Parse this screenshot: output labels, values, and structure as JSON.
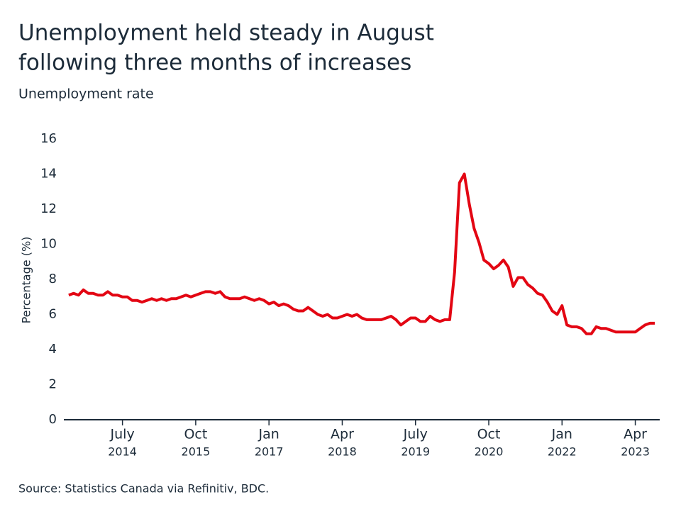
{
  "chart_data": {
    "type": "line",
    "title": [
      "Unemployment held steady in August",
      "following three months of increases"
    ],
    "subtitle": "Unemployment rate",
    "y_label": "Percentage (%)",
    "source": "Source: Statistics Canada via Refinitiv, BDC.",
    "x": [
      "2013-08",
      "2013-09",
      "2013-10",
      "2013-11",
      "2013-12",
      "2014-01",
      "2014-02",
      "2014-03",
      "2014-04",
      "2014-05",
      "2014-06",
      "2014-07",
      "2014-08",
      "2014-09",
      "2014-10",
      "2014-11",
      "2014-12",
      "2015-01",
      "2015-02",
      "2015-03",
      "2015-04",
      "2015-05",
      "2015-06",
      "2015-07",
      "2015-08",
      "2015-09",
      "2015-10",
      "2015-11",
      "2015-12",
      "2016-01",
      "2016-02",
      "2016-03",
      "2016-04",
      "2016-05",
      "2016-06",
      "2016-07",
      "2016-08",
      "2016-09",
      "2016-10",
      "2016-11",
      "2016-12",
      "2017-01",
      "2017-02",
      "2017-03",
      "2017-04",
      "2017-05",
      "2017-06",
      "2017-07",
      "2017-08",
      "2017-09",
      "2017-10",
      "2017-11",
      "2017-12",
      "2018-01",
      "2018-02",
      "2018-03",
      "2018-04",
      "2018-05",
      "2018-06",
      "2018-07",
      "2018-08",
      "2018-09",
      "2018-10",
      "2018-11",
      "2018-12",
      "2019-01",
      "2019-02",
      "2019-03",
      "2019-04",
      "2019-05",
      "2019-06",
      "2019-07",
      "2019-08",
      "2019-09",
      "2019-10",
      "2019-11",
      "2019-12",
      "2020-01",
      "2020-02",
      "2020-03",
      "2020-04",
      "2020-05",
      "2020-06",
      "2020-07",
      "2020-08",
      "2020-09",
      "2020-10",
      "2020-11",
      "2020-12",
      "2021-01",
      "2021-02",
      "2021-03",
      "2021-04",
      "2021-05",
      "2021-06",
      "2021-07",
      "2021-08",
      "2021-09",
      "2021-10",
      "2021-11",
      "2021-12",
      "2022-01",
      "2022-02",
      "2022-03",
      "2022-04",
      "2022-05",
      "2022-06",
      "2022-07",
      "2022-08",
      "2022-09",
      "2022-10",
      "2022-11",
      "2022-12",
      "2023-01",
      "2023-02",
      "2023-03",
      "2023-04",
      "2023-05",
      "2023-06",
      "2023-07",
      "2023-08"
    ],
    "series": [
      {
        "name": "Unemployment rate",
        "color": "#e30613",
        "values": [
          7.1,
          7.2,
          7.1,
          7.4,
          7.2,
          7.2,
          7.1,
          7.1,
          7.3,
          7.1,
          7.1,
          7.0,
          7.0,
          6.8,
          6.8,
          6.7,
          6.8,
          6.9,
          6.8,
          6.9,
          6.8,
          6.9,
          6.9,
          7.0,
          7.1,
          7.0,
          7.1,
          7.2,
          7.3,
          7.3,
          7.2,
          7.3,
          7.0,
          6.9,
          6.9,
          6.9,
          7.0,
          6.9,
          6.8,
          6.9,
          6.8,
          6.6,
          6.7,
          6.5,
          6.6,
          6.5,
          6.3,
          6.2,
          6.2,
          6.4,
          6.2,
          6.0,
          5.9,
          6.0,
          5.8,
          5.8,
          5.9,
          6.0,
          5.9,
          6.0,
          5.8,
          5.7,
          5.7,
          5.7,
          5.7,
          5.8,
          5.9,
          5.7,
          5.4,
          5.6,
          5.8,
          5.8,
          5.6,
          5.6,
          5.9,
          5.7,
          5.6,
          5.7,
          5.7,
          8.4,
          13.5,
          14.0,
          12.3,
          10.9,
          10.1,
          9.1,
          8.9,
          8.6,
          8.8,
          9.1,
          8.7,
          7.6,
          8.1,
          8.1,
          7.7,
          7.5,
          7.2,
          7.1,
          6.7,
          6.2,
          6.0,
          6.5,
          5.4,
          5.3,
          5.3,
          5.2,
          4.9,
          4.9,
          5.3,
          5.2,
          5.2,
          5.1,
          5.0,
          5.0,
          5.0,
          5.0,
          5.0,
          5.2,
          5.4,
          5.5,
          5.5
        ]
      }
    ],
    "xlim": [
      "2013-07",
      "2023-09"
    ],
    "xticks": [
      {
        "value": "2014-07",
        "label": [
          "July",
          "2014"
        ]
      },
      {
        "value": "2015-10",
        "label": [
          "Oct",
          "2015"
        ]
      },
      {
        "value": "2017-01",
        "label": [
          "Jan",
          "2017"
        ]
      },
      {
        "value": "2018-04",
        "label": [
          "Apr",
          "2018"
        ]
      },
      {
        "value": "2019-07",
        "label": [
          "July",
          "2019"
        ]
      },
      {
        "value": "2020-10",
        "label": [
          "Oct",
          "2020"
        ]
      },
      {
        "value": "2022-01",
        "label": [
          "Jan",
          "2022"
        ]
      },
      {
        "value": "2023-04",
        "label": [
          "Apr",
          "2023"
        ]
      }
    ],
    "ylim": [
      0,
      16
    ],
    "yticks": [
      0,
      2,
      4,
      6,
      8,
      10,
      12,
      14,
      16
    ],
    "grid": false
  }
}
